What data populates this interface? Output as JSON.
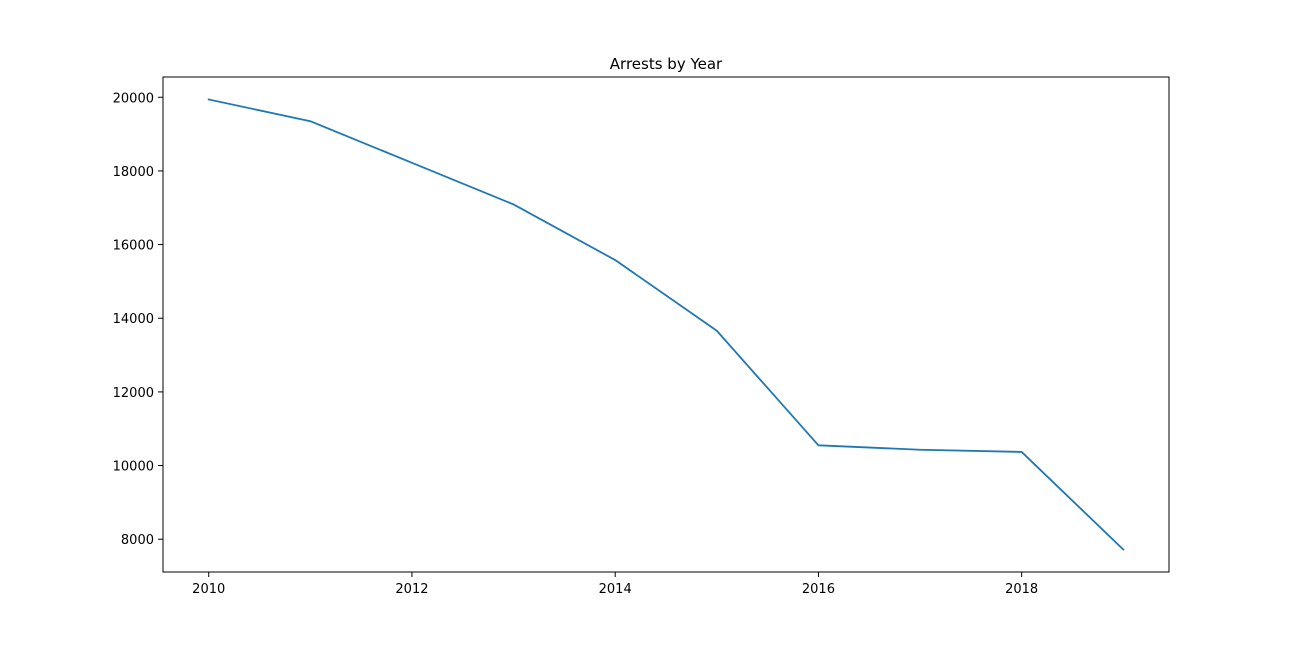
{
  "chart_data": {
    "type": "line",
    "title": "Arrests by Year",
    "xlabel": "",
    "ylabel": "",
    "x": [
      2010,
      2011,
      2012,
      2013,
      2014,
      2015,
      2016,
      2017,
      2018,
      2019
    ],
    "series": [
      {
        "values": [
          19940,
          19350,
          18220,
          17090,
          15580,
          13660,
          10550,
          10430,
          10370,
          7720
        ],
        "color": "#1f77b4"
      }
    ],
    "xlim": [
      2009.55,
      2019.45
    ],
    "ylim": [
      7110,
      20550
    ],
    "x_ticks": [
      2010,
      2012,
      2014,
      2016,
      2018
    ],
    "x_tick_labels": [
      "2010",
      "2012",
      "2014",
      "2016",
      "2018"
    ],
    "y_ticks": [
      8000,
      10000,
      12000,
      14000,
      16000,
      18000,
      20000
    ],
    "y_tick_labels": [
      "8000",
      "10000",
      "12000",
      "14000",
      "16000",
      "18000",
      "20000"
    ],
    "grid": false,
    "legend": "none"
  }
}
